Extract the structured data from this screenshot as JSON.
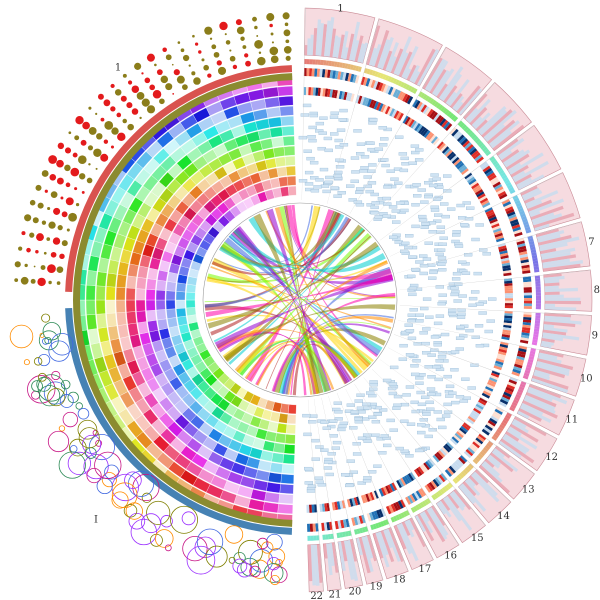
{
  "chromosome_labels": [
    "1",
    "7",
    "8",
    "9",
    "10",
    "11",
    "12",
    "13",
    "14",
    "15",
    "16",
    "17",
    "18",
    "19",
    "20",
    "21",
    "22"
  ],
  "left_labels": [
    "1",
    "I"
  ]
}
